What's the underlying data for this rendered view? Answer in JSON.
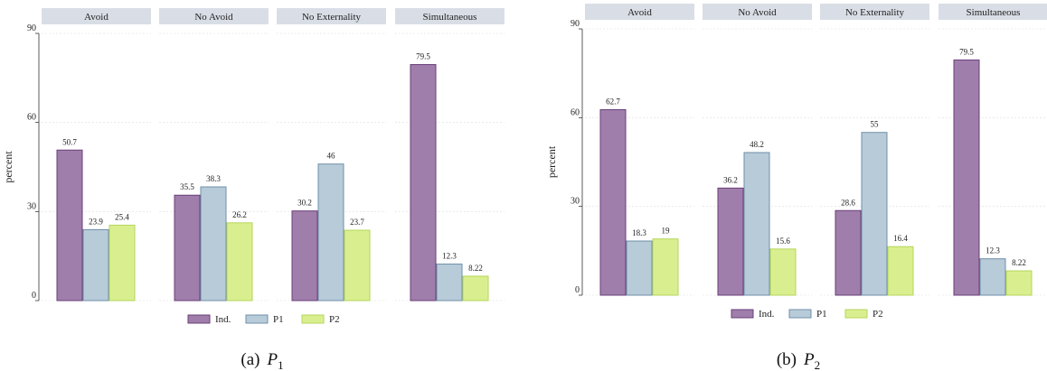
{
  "chart_data": [
    {
      "type": "bar",
      "caption_prefix": "(a)",
      "caption_var": "P",
      "caption_sub": "1",
      "ylabel": "percent",
      "ylim": [
        0,
        90
      ],
      "yticks": [
        0,
        30,
        60,
        90
      ],
      "panels": [
        "Avoid",
        "No Avoid",
        "No Externality",
        "Simultaneous"
      ],
      "series": [
        {
          "name": "Ind.",
          "values": [
            50.7,
            35.5,
            30.2,
            79.5
          ],
          "labels": [
            "50.7",
            "35.5",
            "30.2",
            "79.5"
          ]
        },
        {
          "name": "P1",
          "values": [
            23.9,
            38.3,
            46,
            12.3
          ],
          "labels": [
            "23.9",
            "38.3",
            "46",
            "12.3"
          ]
        },
        {
          "name": "P2",
          "values": [
            25.4,
            26.2,
            23.7,
            8.22
          ],
          "labels": [
            "25.4",
            "26.2",
            "23.7",
            "8.22"
          ]
        }
      ]
    },
    {
      "type": "bar",
      "caption_prefix": "(b)",
      "caption_var": "P",
      "caption_sub": "2",
      "ylabel": "percent",
      "ylim": [
        0,
        90
      ],
      "yticks": [
        0,
        30,
        60,
        90
      ],
      "panels": [
        "Avoid",
        "No Avoid",
        "No Externality",
        "Simultaneous"
      ],
      "series": [
        {
          "name": "Ind.",
          "values": [
            62.7,
            36.2,
            28.6,
            79.5
          ],
          "labels": [
            "62.7",
            "36.2",
            "28.6",
            "79.5"
          ]
        },
        {
          "name": "P1",
          "values": [
            18.3,
            48.2,
            55,
            12.3
          ],
          "labels": [
            "18.3",
            "48.2",
            "55",
            "12.3"
          ]
        },
        {
          "name": "P2",
          "values": [
            19,
            15.6,
            16.4,
            8.22
          ],
          "labels": [
            "19",
            "15.6",
            "16.4",
            "8.22"
          ]
        }
      ]
    }
  ],
  "colors": {
    "series_fill": [
      "#a07eab",
      "#b8cbd9",
      "#d9ef8f"
    ],
    "series_stroke": [
      "#6a3f7a",
      "#6f8fa8",
      "#b5d65a"
    ]
  }
}
